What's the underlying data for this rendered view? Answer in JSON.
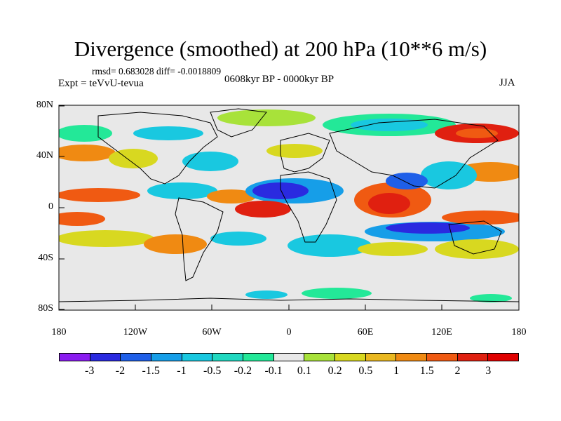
{
  "title": "Divergence (smoothed) at 200 hPa (10**6 m/s)",
  "stats": "rmsd= 0.683028 diff= -0.0018809",
  "experiment": "Expt = teVvU-tevua",
  "period": "0608kyr BP - 0000kyr BP",
  "season": "JJA",
  "lat_labels": [
    "80N",
    "40N",
    "0",
    "40S",
    "80S"
  ],
  "lon_labels": [
    "180",
    "120W",
    "60W",
    "0",
    "60E",
    "120E",
    "180"
  ],
  "colorbar": {
    "labels": [
      "-3",
      "-2",
      "-1.5",
      "-1",
      "-0.5",
      "-0.2",
      "-0.1",
      "0.1",
      "0.2",
      "0.5",
      "1",
      "1.5",
      "2",
      "3"
    ],
    "colors": [
      "#8a1cf0",
      "#2a2ae0",
      "#1f5fe8",
      "#169ee8",
      "#19c8e0",
      "#20d8c0",
      "#23e898",
      "#e8e8e8",
      "#a8e23a",
      "#d8d820",
      "#eab820",
      "#f08a12",
      "#f05a12",
      "#e02010",
      "#e00000"
    ]
  },
  "colors": {
    "land_line": "#000000",
    "background_neutral": "#e8e8e8"
  }
}
